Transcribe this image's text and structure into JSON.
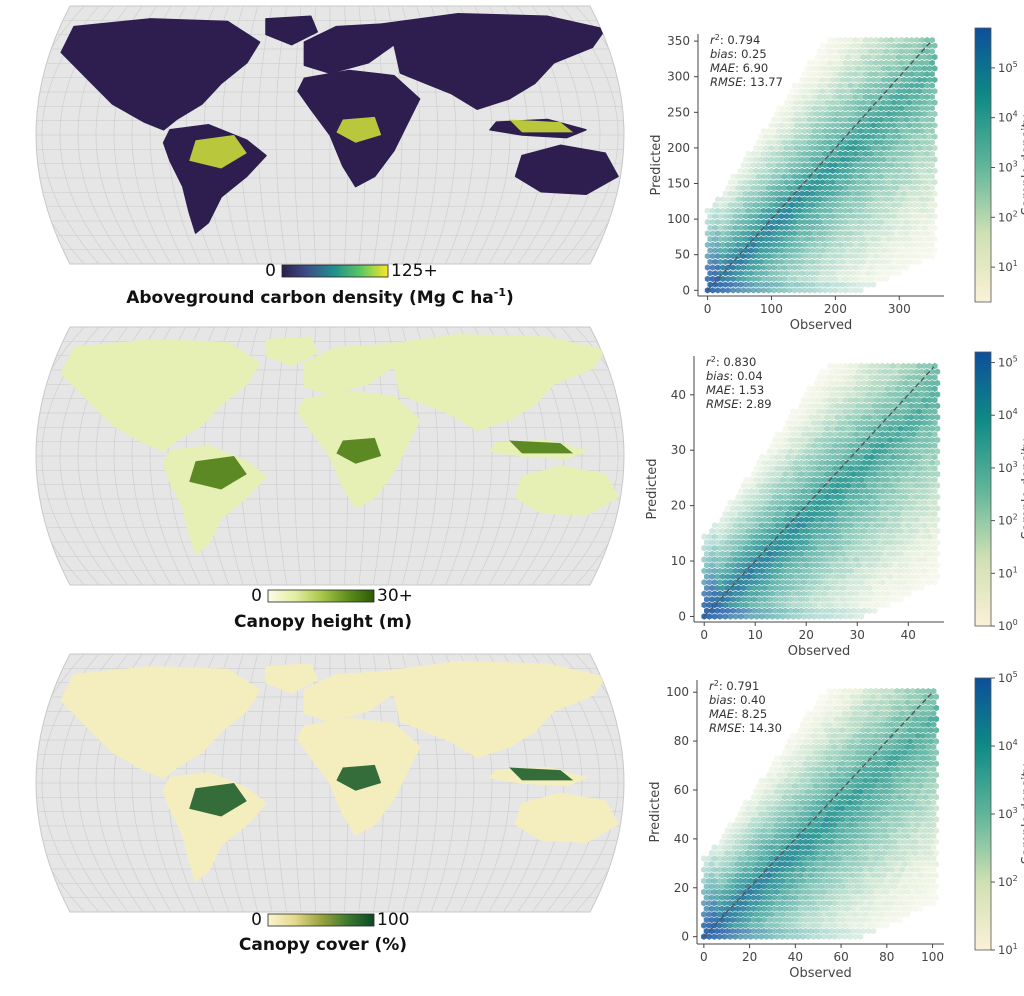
{
  "chart_data": [
    {
      "type": "map",
      "title": "Aboveground carbon density (Mg C ha-1)",
      "title_main": "Aboveground carbon density (Mg C ha",
      "title_sup": "-1",
      "title_end": ")",
      "legend": {
        "min_label": "0",
        "max_label": "125+",
        "min": 0,
        "max": 125,
        "colors": [
          "#2d1e4f",
          "#3b528b",
          "#21918c",
          "#5ec962",
          "#fde725"
        ]
      },
      "land_color": "#2d1e4f",
      "accent_color": "#c9d93a"
    },
    {
      "type": "map",
      "title": "Canopy height (m)",
      "legend": {
        "min_label": "0",
        "max_label": "30+",
        "min": 0,
        "max": 30,
        "colors": [
          "#fbfbe7",
          "#e4eea5",
          "#a9c84b",
          "#5f8f1d",
          "#2c5a05"
        ]
      },
      "land_color": "#e6efb4",
      "accent_color": "#4e7d14"
    },
    {
      "type": "map",
      "title": "Canopy cover (%)",
      "legend": {
        "min_label": "0",
        "max_label": "100",
        "min": 0,
        "max": 100,
        "colors": [
          "#fbf5d0",
          "#e6d98c",
          "#9aa33f",
          "#3d7a2f",
          "#0b4a23"
        ]
      },
      "land_color": "#f4eebf",
      "accent_color": "#1f5e2a"
    },
    {
      "type": "scatter",
      "subtype": "hexbin",
      "xlabel": "Observed",
      "ylabel": "Predicted",
      "xlim": [
        -15,
        370
      ],
      "ylim": [
        -8,
        360
      ],
      "xticks": [
        0,
        100,
        200,
        300
      ],
      "yticks": [
        0,
        50,
        100,
        150,
        200,
        250,
        300,
        350
      ],
      "identity_line": [
        0,
        350
      ],
      "stats": {
        "r2": "0.794",
        "bias": "0.25",
        "MAE": "6.90",
        "RMSE": "13.77"
      },
      "density_max": 260,
      "colorbar": {
        "label": "Sample density",
        "ticks": [
          "10",
          "10",
          "10",
          "10",
          "10"
        ],
        "exponents": [
          "1",
          "2",
          "3",
          "4",
          "5"
        ],
        "log_min": 0.3,
        "log_max": 5.8,
        "tick_logs": [
          1,
          2,
          3,
          4,
          5
        ],
        "colors": [
          "#fbf1d8",
          "#cfe0b3",
          "#5fb59a",
          "#0f8a85",
          "#0b4f9c"
        ]
      }
    },
    {
      "type": "scatter",
      "subtype": "hexbin",
      "xlabel": "Observed",
      "ylabel": "Predicted",
      "xlim": [
        -2,
        47
      ],
      "ylim": [
        -1,
        47
      ],
      "xticks": [
        0,
        10,
        20,
        30,
        40
      ],
      "yticks": [
        0,
        10,
        20,
        30,
        40
      ],
      "identity_line": [
        0,
        45
      ],
      "stats": {
        "r2": "0.830",
        "bias": "0.04",
        "MAE": "1.53",
        "RMSE": "2.89"
      },
      "density_max": 34,
      "colorbar": {
        "label": "Sample density",
        "ticks": [
          "10",
          "10",
          "10",
          "10",
          "10",
          "10"
        ],
        "exponents": [
          "0",
          "1",
          "2",
          "3",
          "4",
          "5"
        ],
        "log_min": 0,
        "log_max": 5.2,
        "tick_logs": [
          0,
          1,
          2,
          3,
          4,
          5
        ],
        "colors": [
          "#fbf1d8",
          "#cfe0b3",
          "#5fb59a",
          "#0f8a85",
          "#0b4f9c"
        ]
      }
    },
    {
      "type": "scatter",
      "subtype": "hexbin",
      "xlabel": "Observed",
      "ylabel": "Predicted",
      "xlim": [
        -3,
        105
      ],
      "ylim": [
        -3,
        105
      ],
      "xticks": [
        0,
        20,
        40,
        60,
        80,
        100
      ],
      "yticks": [
        0,
        20,
        40,
        60,
        80,
        100
      ],
      "identity_line": [
        0,
        100
      ],
      "stats": {
        "r2": "0.791",
        "bias": "0.40",
        "MAE": "8.25",
        "RMSE": "14.30"
      },
      "density_max": 100,
      "colorbar": {
        "label": "Sample density",
        "ticks": [
          "10",
          "10",
          "10",
          "10",
          "10"
        ],
        "exponents": [
          "1",
          "2",
          "3",
          "4",
          "5"
        ],
        "log_min": 1,
        "log_max": 5,
        "tick_logs": [
          1,
          2,
          3,
          4,
          5
        ],
        "colors": [
          "#fbf1d8",
          "#cfe0b3",
          "#5fb59a",
          "#0f8a85",
          "#0b4f9c"
        ]
      }
    }
  ]
}
